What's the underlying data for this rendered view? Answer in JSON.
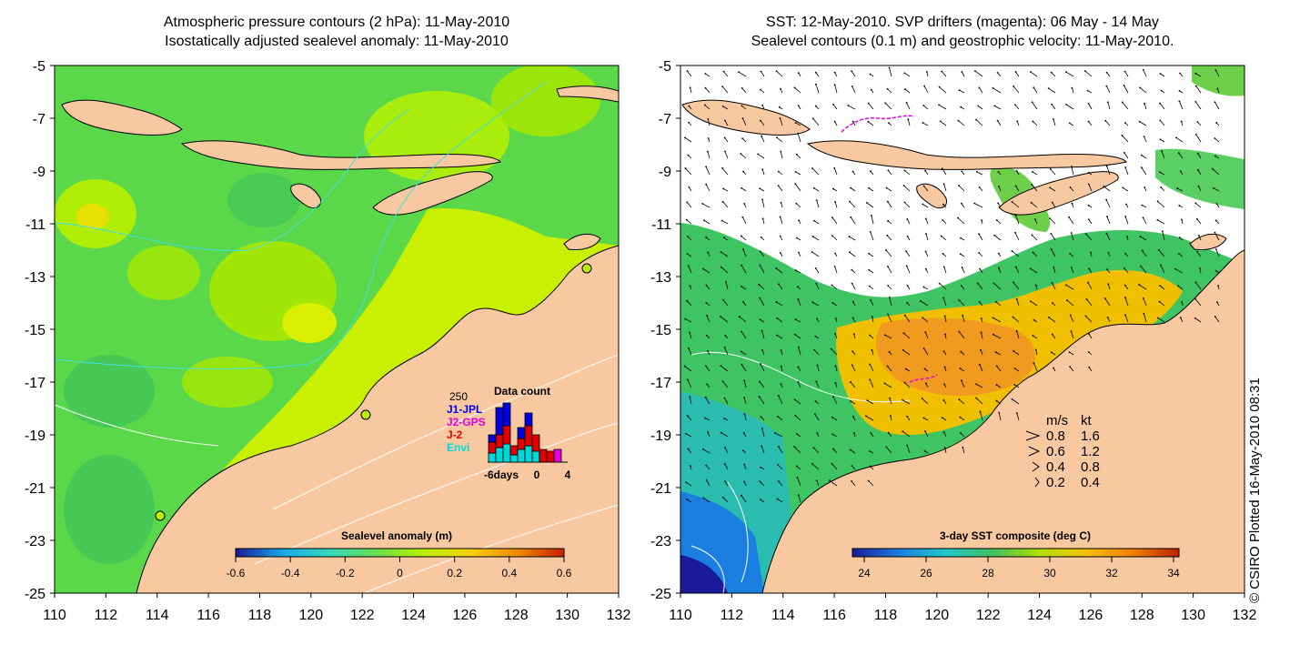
{
  "left_panel": {
    "title_line1": "Atmospheric pressure contours (2 hPa): 11-May-2010",
    "title_line2": "Isostatically adjusted sealevel anomaly: 11-May-2010",
    "colorbar_label": "Sealevel anomaly (m)",
    "colorbar_ticks": [
      "-0.6",
      "-0.4",
      "-0.2",
      "0",
      "0.2",
      "0.4",
      "0.6"
    ],
    "colorbar_colors": [
      "#1a1a9a",
      "#1aa6e6",
      "#35d9c0",
      "#66e04d",
      "#b8f000",
      "#f5d000",
      "#f08a00",
      "#c82000"
    ],
    "inset": {
      "title": "Data count",
      "ymax_label": "250",
      "xtick_labels": [
        "-6days",
        "0",
        "4"
      ],
      "legend": [
        {
          "label": "J1-JPL",
          "color": "#0000e0"
        },
        {
          "label": "J2-GPS",
          "color": "#e000e0"
        },
        {
          "label": "J-2",
          "color": "#e00000"
        },
        {
          "label": "Envi",
          "color": "#00d8d8"
        }
      ]
    }
  },
  "right_panel": {
    "title_line1": "SST: 12-May-2010. SVP drifters (magenta): 06 May - 14 May",
    "title_line2": "Sealevel contours (0.1 m) and geostrophic velocity: 11-May-2010.",
    "colorbar_label": "3-day SST composite (deg C)",
    "colorbar_ticks": [
      "24",
      "26",
      "28",
      "30",
      "32",
      "34"
    ],
    "colorbar_colors": [
      "#1a1a9a",
      "#1a7fe0",
      "#20c8c8",
      "#40c060",
      "#b0e000",
      "#f5c000",
      "#f08000",
      "#c02000"
    ],
    "velocity_legend": {
      "header_ms": "m/s",
      "header_kt": "kt",
      "rows": [
        {
          "ms": "0.8",
          "kt": "1.6"
        },
        {
          "ms": "0.6",
          "kt": "1.2"
        },
        {
          "ms": "0.4",
          "kt": "0.8"
        },
        {
          "ms": "0.2",
          "kt": "0.4"
        }
      ]
    }
  },
  "axes": {
    "y_ticks": [
      "-5",
      "-7",
      "-9",
      "-11",
      "-13",
      "-15",
      "-17",
      "-19",
      "-21",
      "-23",
      "-25"
    ],
    "x_ticks": [
      "110",
      "112",
      "114",
      "116",
      "118",
      "120",
      "122",
      "124",
      "126",
      "128",
      "130",
      "132"
    ]
  },
  "credit": "© CSIRO Plotted 16-May-2010 08:31",
  "colors": {
    "land": "#f8c8a0",
    "ocean_green": "#5bd84a",
    "yellow_green": "#c8f000",
    "no_data": "#ffffff",
    "drifter": "#e000e0",
    "contour_cyan": "#40e0e0"
  }
}
